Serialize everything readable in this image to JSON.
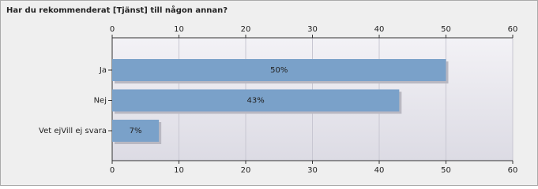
{
  "chart_data": {
    "type": "bar",
    "orientation": "horizontal",
    "title": "Har du rekommenderat [Tjänst] till någon annan?",
    "categories": [
      "Ja",
      "Nej",
      "Vet ejVill ej svara"
    ],
    "values": [
      50,
      43,
      7
    ],
    "value_labels": [
      "50%",
      "43%",
      "7%"
    ],
    "color": "#7aa1c9",
    "xlim": [
      0,
      60
    ],
    "xticks": [
      0,
      10,
      20,
      30,
      40,
      50,
      60
    ],
    "grid": true
  }
}
